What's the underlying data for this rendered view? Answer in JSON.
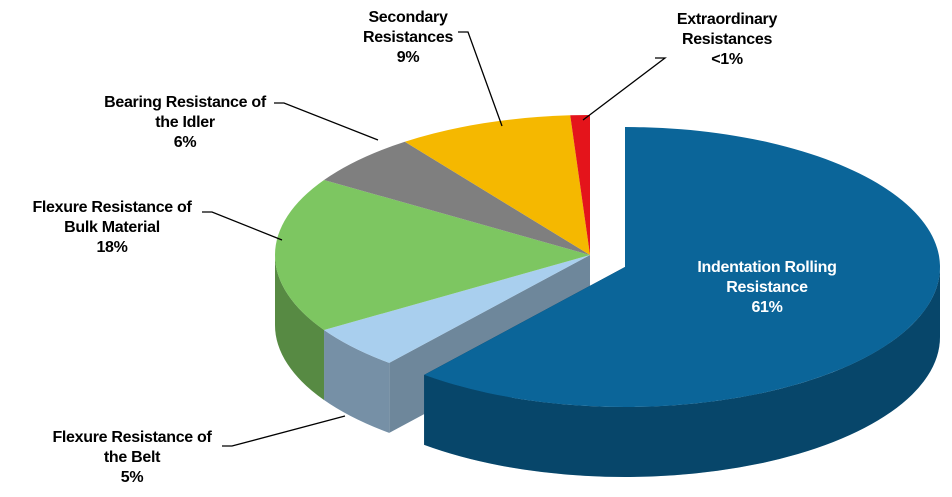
{
  "chart_data": {
    "type": "pie3d",
    "categories": [
      "Indentation Rolling Resistance",
      "Flexure Resistance of the Belt",
      "Flexure Resistance of Bulk Material",
      "Bearing Resistance of the Idler",
      "Secondary Resistances",
      "Extraordinary Resistances"
    ],
    "values": [
      61,
      5,
      18,
      6,
      9,
      1
    ],
    "value_labels": [
      "61%",
      "5%",
      "18%",
      "6%",
      "9%",
      "<1%"
    ],
    "colors": [
      "#0b6599",
      "#a9cfee",
      "#7dc661",
      "#7f7f7f",
      "#f5b800",
      "#e4141b"
    ]
  }
}
